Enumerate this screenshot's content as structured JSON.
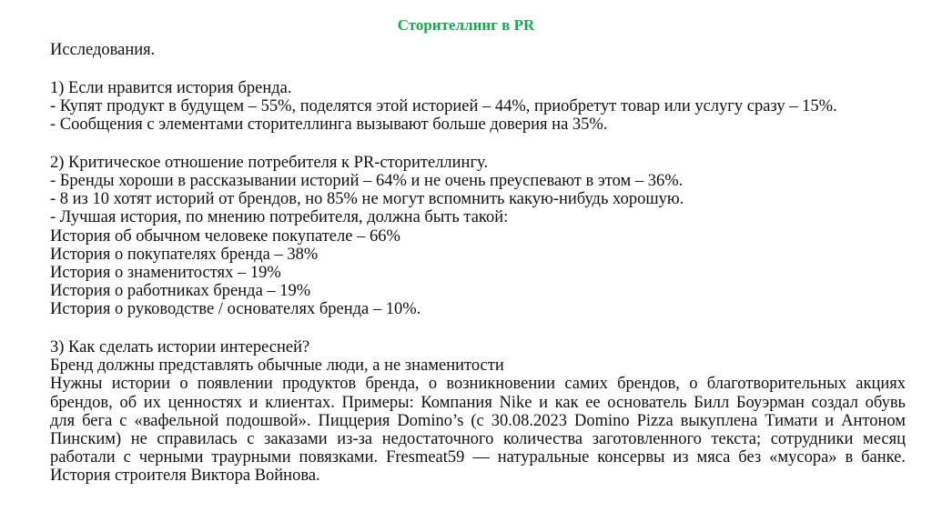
{
  "title": "Сторителлинг в PR",
  "intro": "Исследования.",
  "section1": {
    "heading": "1) Если нравится история бренда.",
    "lines": [
      "- Купят продукт в будущем – 55%, поделятся этой историей – 44%, приобретут товар или услугу сразу – 15%.",
      "- Сообщения с элементами сторителлинга вызывают больше доверия на 35%."
    ]
  },
  "section2": {
    "heading": "2) Критическое отношение потребителя к PR-сторителлингу.",
    "lines": [
      "- Бренды хороши в рассказывании историй – 64% и не очень преуспевают в этом – 36%.",
      "- 8 из 10 хотят историй от брендов, но 85% не могут вспомнить какую-нибудь хорошую.",
      "- Лучшая история, по мнению потребителя, должна быть такой:",
      "История об обычном человеке покупателе – 66%",
      "История о покупателях бренда – 38%",
      "История о знаменитостях – 19%",
      "История о работниках бренда – 19%",
      "История о руководстве / основателях бренда – 10%."
    ]
  },
  "section3": {
    "heading": "3) Как сделать истории интересней?",
    "line1": "Бренд должны представлять обычные люди, а не знаменитости",
    "paragraph_lines": [
      "Нужны истории о появлении продуктов бренда, о возникновении самих брендов, о благотворительных акциях",
      "брендов, об их ценностях и клиентах. Примеры: Компания Nike и как ее основатель Билл Боуэрман создал обувь",
      "для бега с «вафельной подошвой». Пиццерия Domino’s (с 30.08.2023 Domino Pizza выкуплена Тимати и Антоном",
      "Пинским) не справилась с заказами из-за недостаточного количества заготовленного текста; сотрудники месяц",
      "работали с черными траурными повязками. Fresmeat59 — натуральные консервы из мяса без «мусора» в банке."
    ],
    "last_line": "История строителя  Виктора Войнова."
  }
}
